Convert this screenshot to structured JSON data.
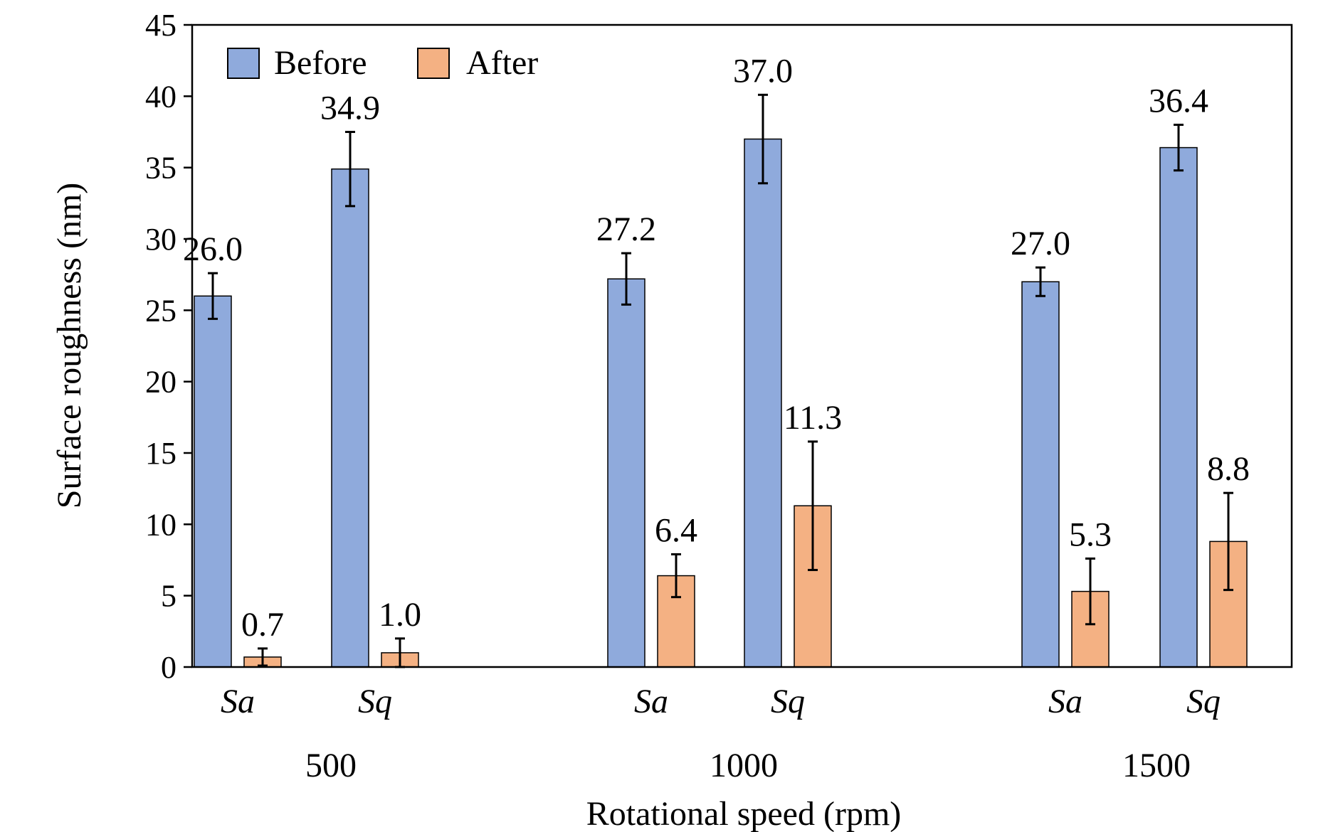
{
  "chart_data": {
    "type": "bar",
    "xlabel": "Rotational speed (rpm)",
    "ylabel": "Surface roughness (nm)",
    "ylim": [
      0,
      45
    ],
    "yticks": [
      0,
      5,
      10,
      15,
      20,
      25,
      30,
      35,
      40,
      45
    ],
    "grid": false,
    "legend": {
      "position": "top-left",
      "entries": [
        "Before",
        "After"
      ]
    },
    "groups": [
      {
        "label": "500",
        "metrics": [
          {
            "label": "Sa",
            "before": 26.0,
            "before_err": 1.6,
            "after": 0.7,
            "after_err": 0.6,
            "before_text": "26.0",
            "after_text": "0.7"
          },
          {
            "label": "Sq",
            "before": 34.9,
            "before_err": 2.6,
            "after": 1.0,
            "after_err": 1.0,
            "before_text": "34.9",
            "after_text": "1.0"
          }
        ]
      },
      {
        "label": "1000",
        "metrics": [
          {
            "label": "Sa",
            "before": 27.2,
            "before_err": 1.8,
            "after": 6.4,
            "after_err": 1.5,
            "before_text": "27.2",
            "after_text": "6.4"
          },
          {
            "label": "Sq",
            "before": 37.0,
            "before_err": 3.1,
            "after": 11.3,
            "after_err": 4.5,
            "before_text": "37.0",
            "after_text": "11.3"
          }
        ]
      },
      {
        "label": "1500",
        "metrics": [
          {
            "label": "Sa",
            "before": 27.0,
            "before_err": 1.0,
            "after": 5.3,
            "after_err": 2.3,
            "before_text": "27.0",
            "after_text": "5.3"
          },
          {
            "label": "Sq",
            "before": 36.4,
            "before_err": 1.6,
            "after": 8.8,
            "after_err": 3.4,
            "before_text": "36.4",
            "after_text": "8.8"
          }
        ]
      }
    ],
    "colors": {
      "before": "#8faadc",
      "after": "#f4b183",
      "stroke": "#000000"
    }
  }
}
